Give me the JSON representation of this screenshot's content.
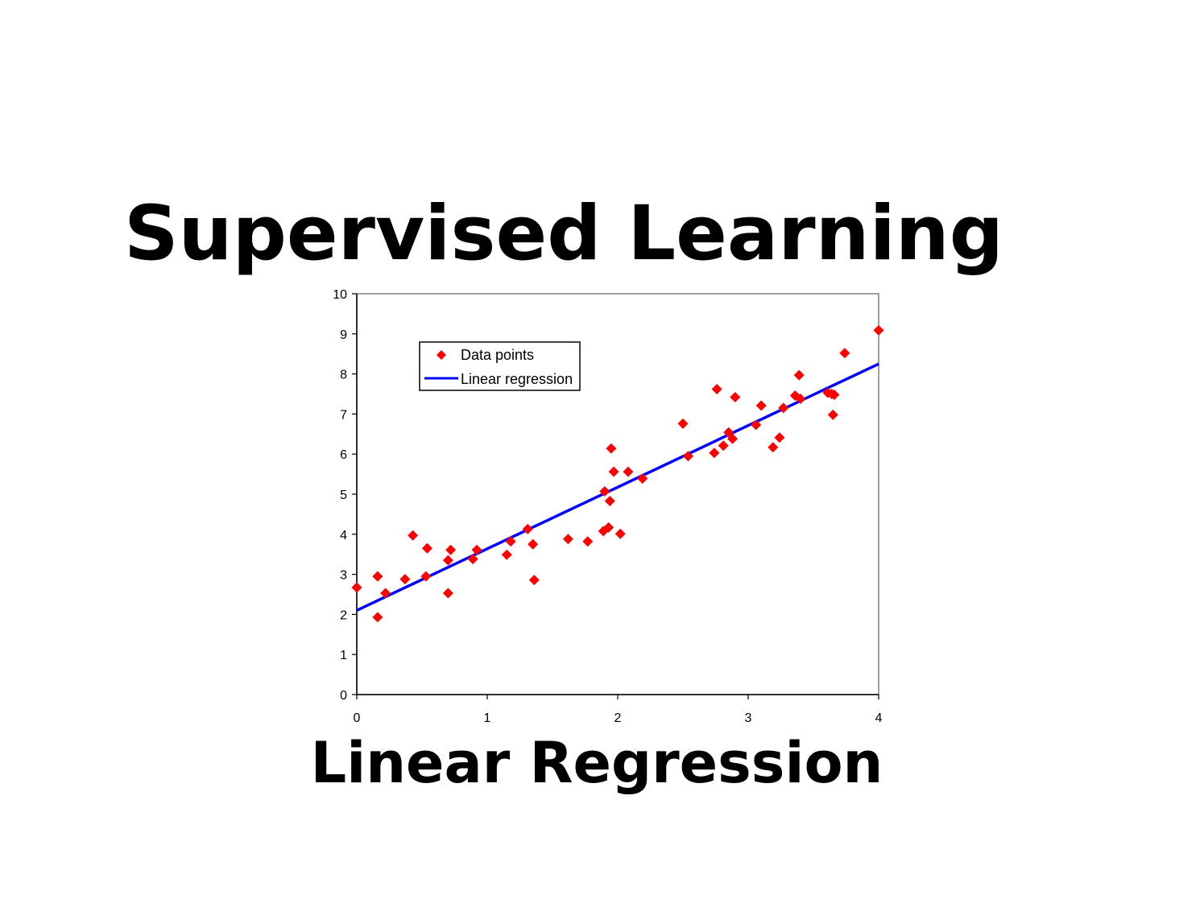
{
  "slide": {
    "title": "Supervised Learning",
    "caption": "Linear Regression"
  },
  "chart_data": {
    "type": "scatter",
    "title": "",
    "xlabel": "",
    "ylabel": "",
    "xlim": [
      0,
      4
    ],
    "ylim": [
      0,
      10
    ],
    "xticks": [
      0,
      1,
      2,
      3,
      4
    ],
    "yticks": [
      0,
      1,
      2,
      3,
      4,
      5,
      6,
      7,
      8,
      9,
      10
    ],
    "grid": false,
    "legend": {
      "placement": "top-left",
      "entries": [
        "Data points",
        "Linear regression"
      ]
    },
    "series": [
      {
        "name": "Data points",
        "kind": "scatter",
        "marker": "diamond",
        "color": "#ff0000",
        "points": [
          [
            0.0,
            2.67
          ],
          [
            0.16,
            2.95
          ],
          [
            0.16,
            1.93
          ],
          [
            0.22,
            2.53
          ],
          [
            0.37,
            2.88
          ],
          [
            0.43,
            3.97
          ],
          [
            0.53,
            2.95
          ],
          [
            0.54,
            3.65
          ],
          [
            0.7,
            3.35
          ],
          [
            0.7,
            2.53
          ],
          [
            0.72,
            3.61
          ],
          [
            0.89,
            3.38
          ],
          [
            0.92,
            3.61
          ],
          [
            1.15,
            3.49
          ],
          [
            1.18,
            3.82
          ],
          [
            1.31,
            4.13
          ],
          [
            1.35,
            3.75
          ],
          [
            1.36,
            2.86
          ],
          [
            1.62,
            3.88
          ],
          [
            1.77,
            3.82
          ],
          [
            1.89,
            4.08
          ],
          [
            1.9,
            5.07
          ],
          [
            1.93,
            4.17
          ],
          [
            1.94,
            4.83
          ],
          [
            1.95,
            6.14
          ],
          [
            1.97,
            5.56
          ],
          [
            2.02,
            4.01
          ],
          [
            2.08,
            5.56
          ],
          [
            2.19,
            5.39
          ],
          [
            2.5,
            6.76
          ],
          [
            2.54,
            5.95
          ],
          [
            2.74,
            6.03
          ],
          [
            2.76,
            7.62
          ],
          [
            2.81,
            6.21
          ],
          [
            2.85,
            6.54
          ],
          [
            2.88,
            6.38
          ],
          [
            2.9,
            7.42
          ],
          [
            3.06,
            6.73
          ],
          [
            3.1,
            7.21
          ],
          [
            3.19,
            6.17
          ],
          [
            3.24,
            6.41
          ],
          [
            3.27,
            7.15
          ],
          [
            3.36,
            7.46
          ],
          [
            3.39,
            7.97
          ],
          [
            3.4,
            7.38
          ],
          [
            3.61,
            7.53
          ],
          [
            3.64,
            7.5
          ],
          [
            3.65,
            6.98
          ],
          [
            3.66,
            7.48
          ],
          [
            3.74,
            8.52
          ],
          [
            4.0,
            9.09
          ]
        ]
      },
      {
        "name": "Linear regression",
        "kind": "line",
        "color": "#0000ff",
        "x": [
          0,
          4
        ],
        "y": [
          2.1,
          8.25
        ]
      }
    ]
  }
}
